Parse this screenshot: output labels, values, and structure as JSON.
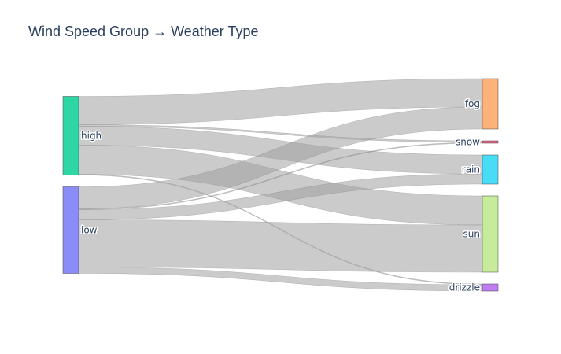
{
  "title": "Wind Speed Group → Weather Type",
  "colors": {
    "link": "#a0a0a0",
    "text": "#2a3f5f",
    "node_stroke": "#444444"
  },
  "sankey": {
    "sources": [
      {
        "id": "high",
        "label": "high",
        "color": "#2ed6a6"
      },
      {
        "id": "low",
        "label": "low",
        "color": "#8a8cf8"
      }
    ],
    "targets": [
      {
        "id": "fog",
        "label": "fog",
        "color": "#fdb27a"
      },
      {
        "id": "snow",
        "label": "snow",
        "color": "#f4628c"
      },
      {
        "id": "rain",
        "label": "rain",
        "color": "#48dcf6"
      },
      {
        "id": "sun",
        "label": "sun",
        "color": "#c7eb9a"
      },
      {
        "id": "drizzle",
        "label": "drizzle",
        "color": "#bf7ff1"
      }
    ],
    "links": [
      {
        "source": "high",
        "target": "fog",
        "value": 36
      },
      {
        "source": "high",
        "target": "snow",
        "value": 2
      },
      {
        "source": "high",
        "target": "rain",
        "value": 24
      },
      {
        "source": "high",
        "target": "sun",
        "value": 37
      },
      {
        "source": "high",
        "target": "drizzle",
        "value": 1
      },
      {
        "source": "low",
        "target": "fog",
        "value": 28
      },
      {
        "source": "low",
        "target": "snow",
        "value": 1
      },
      {
        "source": "low",
        "target": "rain",
        "value": 13
      },
      {
        "source": "low",
        "target": "sun",
        "value": 60
      },
      {
        "source": "low",
        "target": "drizzle",
        "value": 8
      }
    ]
  }
}
